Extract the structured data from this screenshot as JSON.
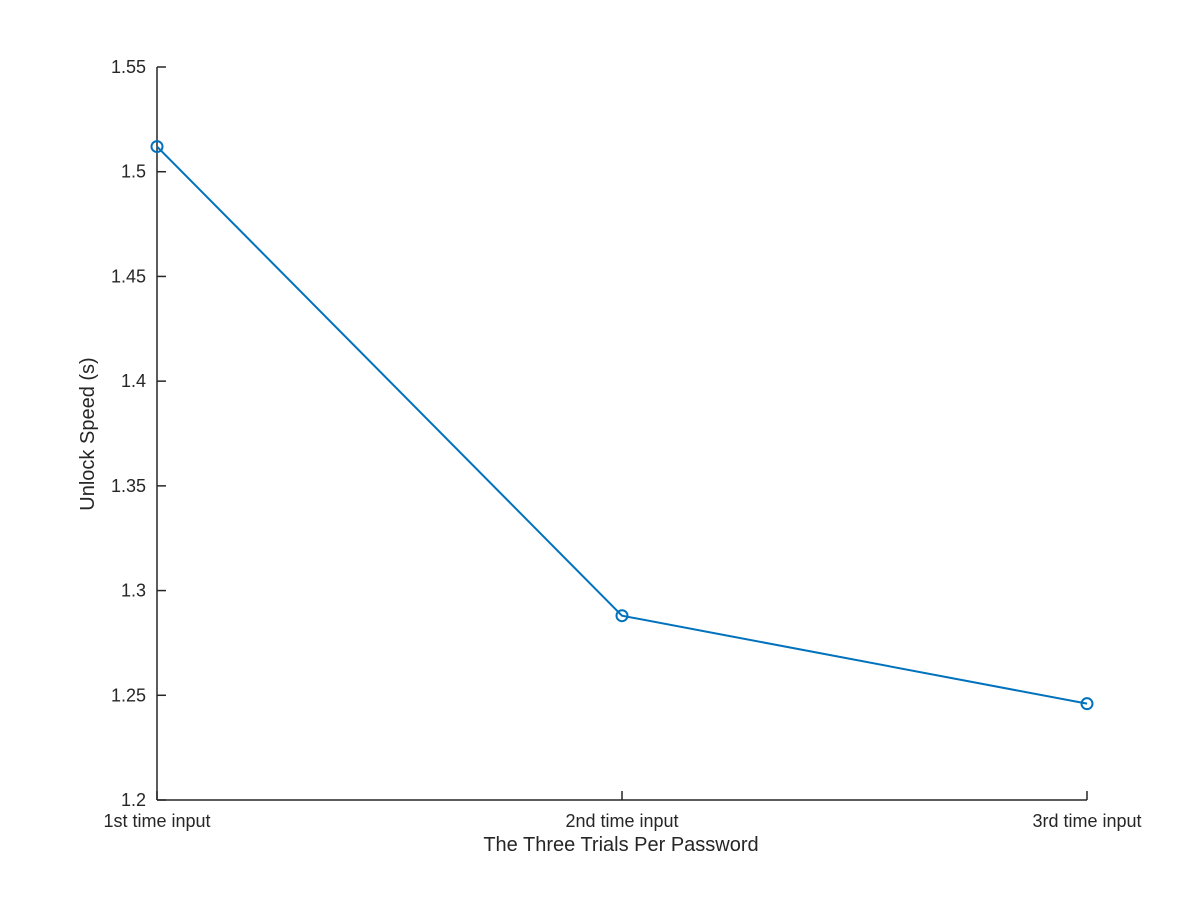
{
  "chart_data": {
    "type": "line",
    "title": "",
    "xlabel": "The Three Trials Per Password",
    "ylabel": "Unlock Speed (s)",
    "categories": [
      "1st time input",
      "2nd time input",
      "3rd time input"
    ],
    "series": [
      {
        "values": [
          1.512,
          1.288,
          1.246
        ],
        "color": "#0072bd",
        "marker": "circle"
      }
    ],
    "ylim": [
      1.2,
      1.55
    ],
    "yticks": [
      1.2,
      1.25,
      1.3,
      1.35,
      1.4,
      1.45,
      1.5,
      1.55
    ],
    "ytick_labels": [
      "1.2",
      "1.25",
      "1.3",
      "1.35",
      "1.4",
      "1.45",
      "1.5",
      "1.55"
    ],
    "grid": false,
    "legend": "none"
  }
}
